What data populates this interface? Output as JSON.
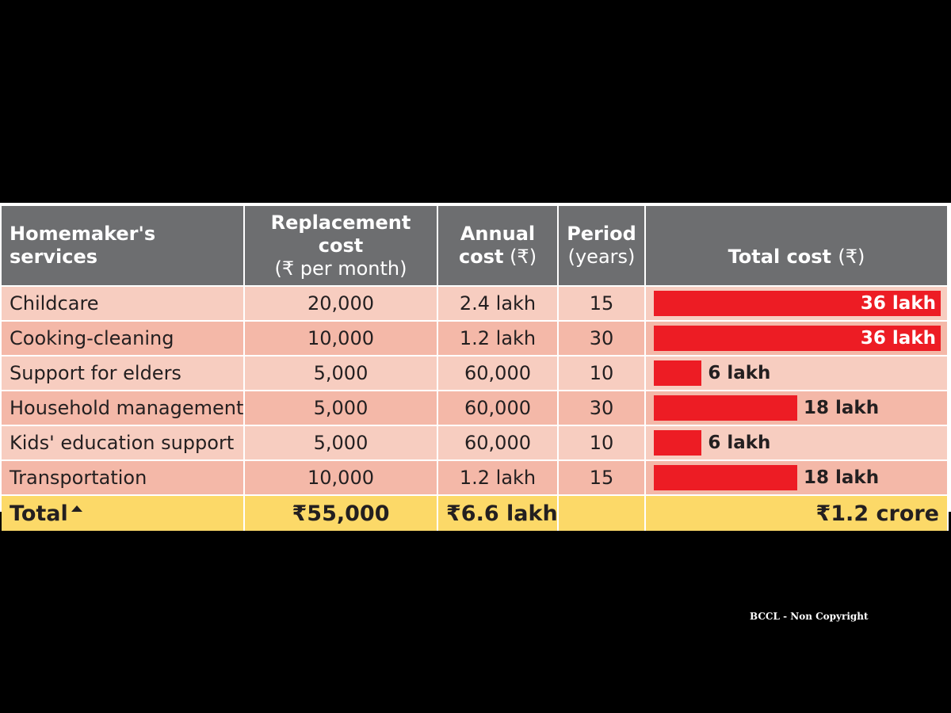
{
  "headers": {
    "service": "Homemaker's services",
    "replacement_title": "Replacement cost",
    "replacement_sub": "(₹ per month)",
    "annual_title": "Annual",
    "annual_sub_word": "cost",
    "annual_sub_unit": "(₹)",
    "period_title": "Period",
    "period_sub": "(years)",
    "total_title": "Total cost",
    "total_sub": "(₹)"
  },
  "rows": [
    {
      "service": "Childcare",
      "monthly": "20,000",
      "annual": "2.4 lakh",
      "period": "15",
      "total_label": "36 lakh"
    },
    {
      "service": "Cooking-cleaning",
      "monthly": "10,000",
      "annual": "1.2 lakh",
      "period": "30",
      "total_label": "36 lakh"
    },
    {
      "service": "Support for elders",
      "monthly": "5,000",
      "annual": "60,000",
      "period": "10",
      "total_label": "6 lakh"
    },
    {
      "service": "Household management",
      "monthly": "5,000",
      "annual": "60,000",
      "period": "30",
      "total_label": "18 lakh"
    },
    {
      "service": "Kids' education support",
      "monthly": "5,000",
      "annual": "60,000",
      "period": "10",
      "total_label": "6 lakh"
    },
    {
      "service": "Transportation",
      "monthly": "10,000",
      "annual": "1.2 lakh",
      "period": "15",
      "total_label": "18 lakh"
    }
  ],
  "total": {
    "label": "Total",
    "monthly": "₹55,000",
    "annual": "₹6.6 lakh",
    "period": "",
    "total": "₹1.2 crore"
  },
  "chart_data": {
    "type": "bar",
    "categories": [
      "Childcare",
      "Cooking-cleaning",
      "Support for elders",
      "Household management",
      "Kids' education support",
      "Transportation"
    ],
    "values": [
      36,
      36,
      6,
      18,
      6,
      18
    ],
    "value_labels": [
      "36 lakh",
      "36 lakh",
      "6 lakh",
      "18 lakh",
      "6 lakh",
      "18 lakh"
    ],
    "title": "",
    "xlabel": "Total cost (₹)",
    "ylabel": "",
    "xlim": [
      0,
      36
    ],
    "orientation": "horizontal",
    "bar_color": "#ed1c24"
  },
  "colors": {
    "header_bg": "#6d6e70",
    "row_light": "#f7cdc0",
    "row_dark": "#f4b8a8",
    "total_bg": "#fcd968",
    "bar": "#ed1c24"
  },
  "watermark": "BCCL - Non Copyright"
}
